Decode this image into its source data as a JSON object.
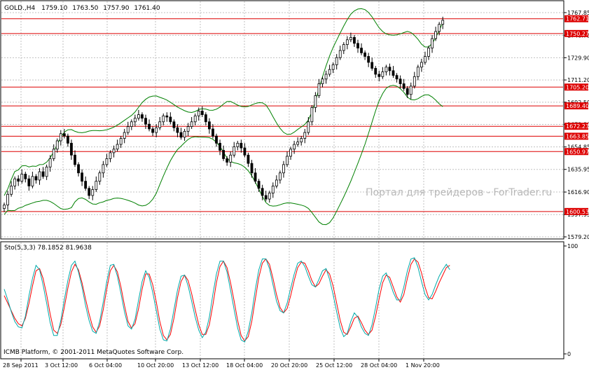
{
  "chart_data": [
    {
      "type": "candlestick",
      "header": {
        "symbol": "GOLD.,H4",
        "open": "1759.10",
        "high": "1763.50",
        "low": "1757.90",
        "close": "1761.40"
      },
      "watermark": "Портал для трейдеров - ForTrader.ru",
      "y_ticks": [
        "1767.85",
        "1748.75",
        "1729.90",
        "1711.20",
        "1692.50",
        "1673.80",
        "1654.85",
        "1635.95",
        "1616.90",
        "1597.95",
        "1579.20"
      ],
      "ylim": [
        1579.2,
        1767.85
      ],
      "horizontal_levels": [
        "1762.71",
        "1750.27",
        "1705.20",
        "1689.40",
        "1672.23",
        "1663.85",
        "1650.97",
        "1600.53"
      ],
      "candles_close": [
        1606,
        1615,
        1622,
        1628,
        1626,
        1632,
        1628,
        1622,
        1630,
        1627,
        1634,
        1630,
        1638,
        1645,
        1653,
        1660,
        1666,
        1664,
        1658,
        1648,
        1640,
        1633,
        1626,
        1620,
        1614,
        1619,
        1626,
        1633,
        1640,
        1645,
        1650,
        1653,
        1657,
        1662,
        1667,
        1672,
        1676,
        1679,
        1682,
        1679,
        1674,
        1670,
        1667,
        1671,
        1676,
        1681,
        1680,
        1676,
        1671,
        1667,
        1663,
        1668,
        1672,
        1676,
        1681,
        1685,
        1682,
        1676,
        1670,
        1664,
        1658,
        1652,
        1645,
        1642,
        1648,
        1655,
        1658,
        1654,
        1648,
        1641,
        1633,
        1626,
        1620,
        1614,
        1611,
        1616,
        1622,
        1627,
        1633,
        1640,
        1647,
        1653,
        1657,
        1659,
        1662,
        1667,
        1676,
        1688,
        1698,
        1708,
        1712,
        1716,
        1720,
        1724,
        1730,
        1736,
        1741,
        1745,
        1747,
        1742,
        1738,
        1734,
        1731,
        1726,
        1721,
        1716,
        1714,
        1718,
        1722,
        1719,
        1715,
        1712,
        1708,
        1704,
        1699,
        1706,
        1714,
        1722,
        1726,
        1731,
        1738,
        1746,
        1752,
        1758,
        1761.4
      ]
    },
    {
      "type": "line",
      "indicator_label": "Sto(5,3,3) 78.1852 81.9638",
      "y_ticks": [
        "100",
        "0"
      ],
      "ylim": [
        0,
        100
      ],
      "series": [
        {
          "color": "#ff0000",
          "values": [
            54,
            47,
            40,
            33,
            28,
            26,
            33,
            47,
            63,
            77,
            79,
            70,
            55,
            37,
            22,
            19,
            27,
            43,
            61,
            76,
            83,
            78,
            66,
            51,
            37,
            25,
            20,
            26,
            41,
            60,
            77,
            82,
            76,
            62,
            45,
            30,
            24,
            28,
            42,
            60,
            74,
            74,
            64,
            48,
            30,
            17,
            13,
            18,
            33,
            52,
            67,
            73,
            68,
            56,
            41,
            27,
            18,
            18,
            27,
            45,
            66,
            81,
            86,
            80,
            66,
            49,
            31,
            17,
            12,
            16,
            30,
            51,
            71,
            84,
            88,
            83,
            70,
            55,
            43,
            38,
            42,
            54,
            68,
            80,
            85,
            84,
            77,
            68,
            62,
            65,
            72,
            78,
            74,
            63,
            47,
            31,
            20,
            18,
            25,
            33,
            35,
            29,
            22,
            18,
            22,
            35,
            51,
            66,
            73,
            71,
            62,
            53,
            48,
            55,
            70,
            83,
            88,
            85,
            75,
            62,
            52,
            51,
            58,
            66,
            73,
            80,
            82
          ]
        },
        {
          "color": "#00aaaa",
          "values": [
            60,
            50,
            39,
            30,
            25,
            24,
            35,
            54,
            70,
            82,
            78,
            64,
            47,
            29,
            17,
            17,
            31,
            50,
            68,
            82,
            86,
            76,
            62,
            45,
            31,
            21,
            19,
            30,
            48,
            67,
            82,
            83,
            72,
            56,
            39,
            26,
            23,
            32,
            50,
            67,
            77,
            71,
            57,
            40,
            23,
            13,
            12,
            23,
            41,
            59,
            72,
            73,
            63,
            49,
            34,
            22,
            15,
            20,
            34,
            55,
            74,
            86,
            86,
            76,
            59,
            41,
            24,
            13,
            11,
            21,
            38,
            60,
            78,
            88,
            88,
            79,
            64,
            49,
            40,
            38,
            47,
            61,
            74,
            84,
            86,
            81,
            72,
            64,
            62,
            69,
            77,
            79,
            69,
            55,
            39,
            24,
            16,
            19,
            30,
            38,
            34,
            25,
            19,
            17,
            27,
            43,
            60,
            72,
            75,
            67,
            57,
            50,
            50,
            62,
            77,
            88,
            89,
            80,
            67,
            55,
            50,
            55,
            64,
            72,
            78,
            83,
            78
          ]
        }
      ]
    }
  ],
  "x_labels": [
    "28 Sep 2011",
    "3 Oct 12:00",
    "6 Oct 04:00",
    "10 Oct 20:00",
    "13 Oct 12:00",
    "18 Oct 04:00",
    "20 Oct 20:00",
    "25 Oct 12:00",
    "28 Oct 04:00",
    "1 Nov 20:00"
  ],
  "footer": "ICMB Platform, © 2001-2011 MetaQuotes Software Corp.",
  "colors": {
    "bull_candle": "#ffffff",
    "bear_candle": "#000000",
    "bands": "#008000",
    "level_line": "#dd0000",
    "level_label_bg": "#dd0000",
    "grid": "#c0c0c0"
  }
}
